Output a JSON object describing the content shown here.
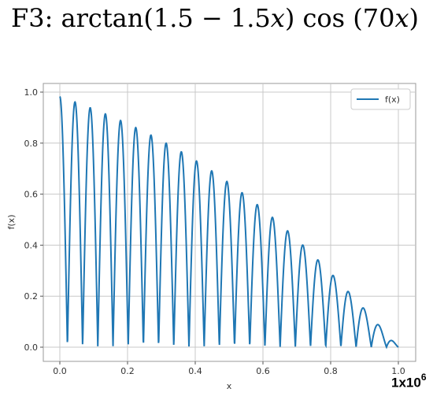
{
  "title": {
    "prefix": "F3: arctan(1.5 − 1.5",
    "var1": "x",
    "middle": ") cos (70",
    "var2": "x",
    "suffix": ")"
  },
  "chart_data": {
    "type": "line",
    "function": "arctan(1.5 - 1.5x) cos(70x)",
    "xlabel": "x",
    "ylabel": "f(x)",
    "x_offset_label": {
      "base": "1x10",
      "exp": "6"
    },
    "xlim": [
      0,
      1.0
    ],
    "ylim": [
      0,
      1.0
    ],
    "x_ticks": [
      "0.0",
      "0.2",
      "0.4",
      "0.6",
      "0.8",
      "1.0"
    ],
    "y_ticks": [
      "0.0",
      "0.2",
      "0.4",
      "0.6",
      "0.8",
      "1.0"
    ],
    "grid": true,
    "legend": {
      "position": "top-right",
      "entries": [
        "f(x)"
      ]
    },
    "series": [
      {
        "name": "f(x)",
        "color": "#1f77b4"
      }
    ],
    "approx_samples": [
      {
        "x": 0.0,
        "y": 0.98
      },
      {
        "x": 0.045,
        "y": 0.96
      },
      {
        "x": 0.09,
        "y": 0.94
      },
      {
        "x": 0.135,
        "y": 0.91
      },
      {
        "x": 0.18,
        "y": 0.89
      },
      {
        "x": 0.224,
        "y": 0.86
      },
      {
        "x": 0.269,
        "y": 0.83
      },
      {
        "x": 0.314,
        "y": 0.8
      },
      {
        "x": 0.359,
        "y": 0.76
      },
      {
        "x": 0.404,
        "y": 0.73
      },
      {
        "x": 0.449,
        "y": 0.69
      },
      {
        "x": 0.494,
        "y": 0.65
      },
      {
        "x": 0.539,
        "y": 0.6
      },
      {
        "x": 0.584,
        "y": 0.56
      },
      {
        "x": 0.628,
        "y": 0.51
      },
      {
        "x": 0.673,
        "y": 0.46
      },
      {
        "x": 0.718,
        "y": 0.4
      },
      {
        "x": 0.763,
        "y": 0.34
      },
      {
        "x": 0.808,
        "y": 0.28
      },
      {
        "x": 0.853,
        "y": 0.22
      },
      {
        "x": 0.898,
        "y": 0.15
      },
      {
        "x": 0.943,
        "y": 0.09
      },
      {
        "x": 0.988,
        "y": 0.03
      }
    ]
  }
}
